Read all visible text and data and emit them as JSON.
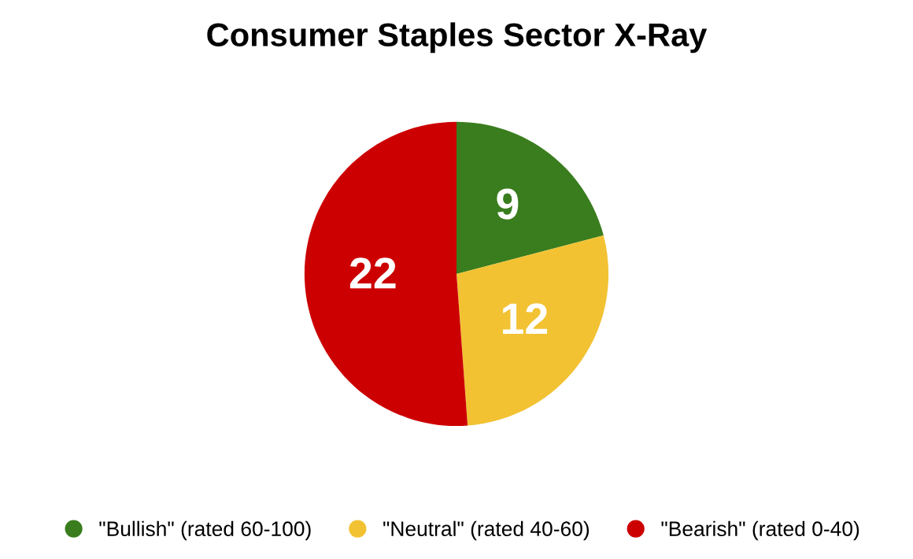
{
  "chart_data": {
    "type": "pie",
    "title": "Consumer Staples Sector X-Ray",
    "categories": [
      "\"Bullish\" (rated 60-100)",
      "\"Neutral\" (rated 40-60)",
      "\"Bearish\" (rated 0-40)"
    ],
    "values": [
      9,
      12,
      22
    ],
    "colors": [
      "#3a7d1e",
      "#f2c232",
      "#cc0000"
    ],
    "data_labels": true,
    "legend": "bottom"
  }
}
